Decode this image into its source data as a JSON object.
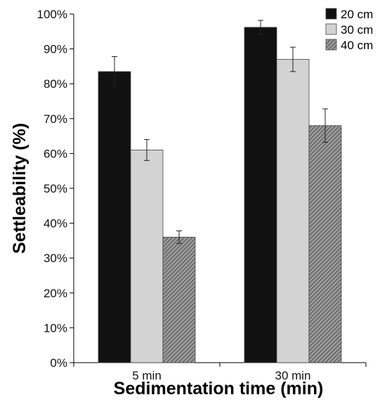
{
  "chart_data": {
    "type": "bar",
    "title": "",
    "xlabel": "Sedimentation time (min)",
    "ylabel": "Settleability (%)",
    "categories": [
      "5 min",
      "30 min"
    ],
    "ylim": [
      0,
      100
    ],
    "yticks": [
      "0%",
      "10%",
      "20%",
      "30%",
      "40%",
      "50%",
      "60%",
      "70%",
      "80%",
      "90%",
      "100%"
    ],
    "grid": false,
    "legend_position": "top-right",
    "series": [
      {
        "name": "20 cm",
        "values": [
          83.5,
          96.2
        ],
        "errors": [
          4.3,
          2.0
        ],
        "color": "#111111",
        "pattern": "solid"
      },
      {
        "name": "30 cm",
        "values": [
          61.0,
          87.0
        ],
        "errors": [
          3.0,
          3.5
        ],
        "color": "#d3d3d3",
        "pattern": "solid"
      },
      {
        "name": "40 cm",
        "values": [
          36.0,
          68.0
        ],
        "errors": [
          1.8,
          4.8
        ],
        "color": "#8a8a8a",
        "pattern": "hatch"
      }
    ]
  }
}
